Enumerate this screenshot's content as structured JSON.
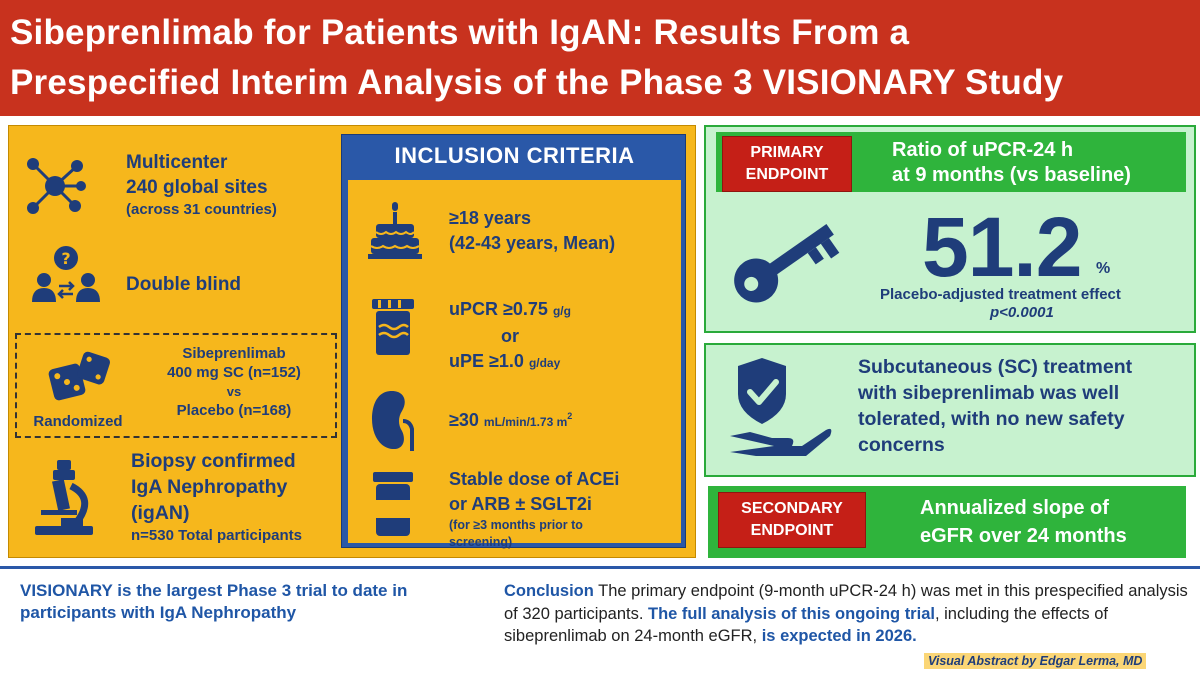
{
  "title": {
    "line1": "Sibeprenlimab for Patients with IgAN: Results From a",
    "line2": "Prespecified Interim Analysis of the Phase 3 VISIONARY Study"
  },
  "study": {
    "multicenter": {
      "line1": "Multicenter",
      "line2": "240 global sites",
      "line3": "(across 31 countries)",
      "icon": "network-icon"
    },
    "double_blind": {
      "label": "Double blind",
      "icon": "people-exchange-icon"
    },
    "randomized": {
      "label": "Randomized",
      "arm1_line1": "Sibeprenlimab",
      "arm1_line2": "400 mg SC (n=152)",
      "vs": "vs",
      "arm2": "Placebo (n=168)",
      "icon": "dice-icon"
    },
    "biopsy": {
      "line1": "Biopsy confirmed",
      "line2": "IgA Nephropathy",
      "line3": "(igAN)",
      "line4": "n=530 Total participants",
      "icon": "microscope-icon"
    }
  },
  "inclusion": {
    "title": "INCLUSION CRITERIA",
    "age_line1": "≥18 years",
    "age_line2": "(42-43 years, Mean)",
    "upcr_main": "uPCR ≥0.75",
    "upcr_unit": "g/g",
    "or": "or",
    "upe_main": "uPE ≥1.0",
    "upe_unit": "g/day",
    "egfr_main": "≥30",
    "egfr_unit": "mL/min/1.73 m",
    "egfr_sup": "2",
    "dose_line1": "Stable dose of ACEi",
    "dose_line2": "or ARB ± SGLT2i",
    "dose_note1": "(for ≥3 months prior to",
    "dose_note2": "screening)"
  },
  "primary": {
    "label_line1": "PRIMARY",
    "label_line2": "ENDPOINT",
    "banner_line1": "Ratio of uPCR-24 h",
    "banner_line2": "at 9 months (vs baseline)",
    "value": "51.2",
    "unit": "%",
    "effect": "Placebo-adjusted treatment effect",
    "p_value": "p<0.0001",
    "icon": "key-icon"
  },
  "safety": {
    "line1": "Subcutaneous (SC) treatment",
    "line2": "with sibeprenlimab was well",
    "line3": "tolerated, with no new safety",
    "line4": "concerns",
    "icon": "shield-check-hand-icon"
  },
  "secondary": {
    "label_line1": "SECONDARY",
    "label_line2": "ENDPOINT",
    "banner_line1": "Annualized slope of",
    "banner_line2": "eGFR over 24 months"
  },
  "bottom": {
    "left_line1": "VISIONARY is the largest Phase 3 trial to date in",
    "left_line2": "participants with IgA Nephropathy",
    "conclusion_label": "Conclusion",
    "conclusion_text1": " The primary endpoint (9-month uPCR-24 h) was met in this prespecified analysis of 320 participants. ",
    "conclusion_blue1": "The full analysis of this ongoing trial",
    "conclusion_text2": ", including the effects of sibeprenlimab on 24-month eGFR, ",
    "conclusion_blue2": "is expected in 2026.",
    "attribution": "Visual Abstract by Edgar Lerma, MD"
  },
  "colors": {
    "header_red": "#c8321e",
    "panel_orange": "#f6b71c",
    "navy": "#1f3d7a",
    "inclusion_blue": "#2a58a8",
    "green_banner": "#2fb43c",
    "green_panel": "#c7f2cf",
    "label_red": "#c51f17"
  }
}
